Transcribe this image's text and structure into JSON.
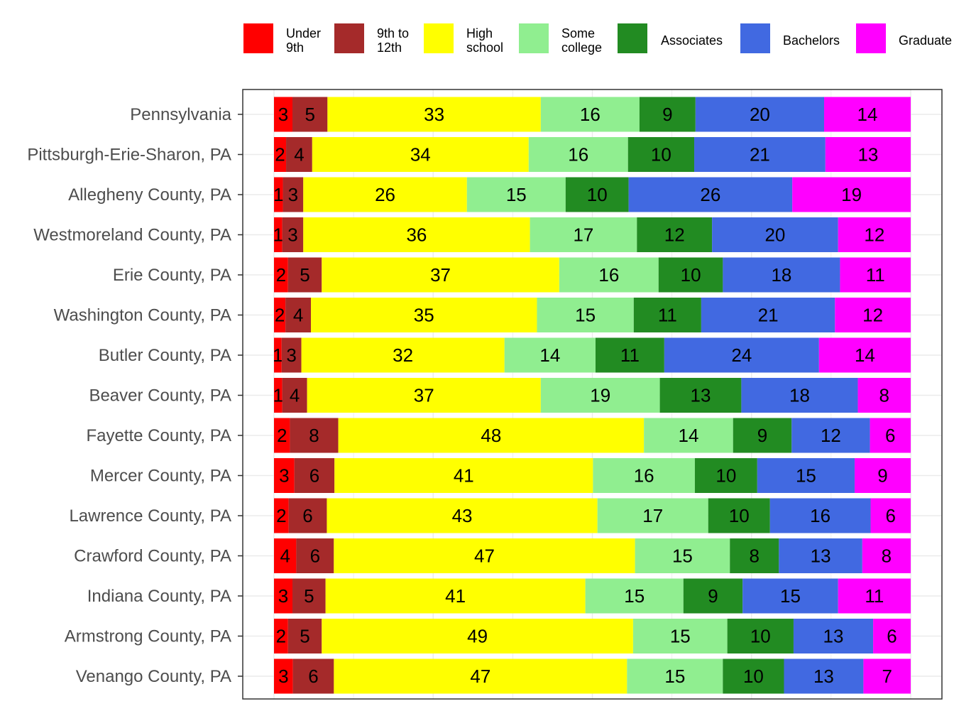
{
  "chart_data": {
    "type": "bar",
    "orientation": "horizontal",
    "stacked": true,
    "normalized": true,
    "title": "",
    "xlabel": "",
    "ylabel": "",
    "grid": true,
    "legend_position": "top",
    "categories": [
      "Pennsylvania",
      "Pittsburgh-Erie-Sharon, PA",
      "Allegheny County, PA",
      "Westmoreland County, PA",
      "Erie County, PA",
      "Washington County, PA",
      "Butler County, PA",
      "Beaver County, PA",
      "Fayette County, PA",
      "Mercer County, PA",
      "Lawrence County, PA",
      "Crawford County, PA",
      "Indiana County, PA",
      "Armstrong County, PA",
      "Venango County, PA"
    ],
    "series": [
      {
        "name": "Under 9th",
        "legend_lines": [
          "Under",
          "9th"
        ],
        "color": "#ff0000",
        "values": [
          2.9,
          1.9,
          1.4,
          1.3,
          2.2,
          1.8,
          1.2,
          1.3,
          2.5,
          3.2,
          2.3,
          3.5,
          2.9,
          2.2,
          3.0
        ]
      },
      {
        "name": "9th to 12th",
        "legend_lines": [
          "9th to",
          "12th"
        ],
        "color": "#a52a2a",
        "values": [
          5.5,
          4.1,
          3.2,
          3.3,
          5.3,
          4.0,
          3.1,
          3.9,
          7.6,
          6.3,
          6.0,
          5.9,
          5.2,
          5.3,
          6.5
        ]
      },
      {
        "name": "High school",
        "legend_lines": [
          "High",
          "school"
        ],
        "color": "#ffff00",
        "values": [
          33.5,
          34.0,
          25.7,
          35.6,
          37.3,
          35.5,
          31.9,
          36.7,
          48.0,
          40.6,
          42.5,
          47.3,
          40.8,
          48.9,
          46.5
        ]
      },
      {
        "name": "Some college",
        "legend_lines": [
          "Some",
          "college"
        ],
        "color": "#90ee90",
        "values": [
          15.5,
          15.6,
          15.5,
          16.8,
          15.6,
          15.2,
          14.3,
          18.7,
          14.0,
          16.0,
          17.4,
          14.9,
          15.4,
          14.8,
          15.2
        ]
      },
      {
        "name": "Associates",
        "legend_lines": [
          "Associates"
        ],
        "color": "#228b22",
        "values": [
          8.8,
          10.4,
          9.9,
          11.8,
          10.1,
          10.6,
          10.8,
          12.8,
          9.2,
          9.8,
          9.7,
          7.7,
          9.3,
          10.4,
          9.7
        ]
      },
      {
        "name": "Bachelors",
        "legend_lines": [
          "Bachelors"
        ],
        "color": "#4169e1",
        "values": [
          20.2,
          20.6,
          25.7,
          19.8,
          18.4,
          21.0,
          24.3,
          18.3,
          12.3,
          15.3,
          15.8,
          13.1,
          15.0,
          12.5,
          12.6
        ]
      },
      {
        "name": "Graduate",
        "legend_lines": [
          "Graduate"
        ],
        "color": "#ff00ff",
        "values": [
          13.6,
          13.4,
          18.6,
          11.4,
          11.1,
          11.9,
          14.4,
          8.3,
          6.4,
          8.8,
          6.3,
          7.6,
          11.4,
          5.9,
          7.5
        ]
      }
    ],
    "labels": [
      [
        "3",
        "5",
        "33",
        "16",
        "9",
        "20",
        "14"
      ],
      [
        "2",
        "4",
        "34",
        "16",
        "10",
        "21",
        "13"
      ],
      [
        "1",
        "3",
        "26",
        "15",
        "10",
        "26",
        "19"
      ],
      [
        "1",
        "3",
        "36",
        "17",
        "12",
        "20",
        "12"
      ],
      [
        "2",
        "5",
        "37",
        "16",
        "10",
        "18",
        "11"
      ],
      [
        "2",
        "4",
        "35",
        "15",
        "11",
        "21",
        "12"
      ],
      [
        "1",
        "3",
        "32",
        "14",
        "11",
        "24",
        "14"
      ],
      [
        "1",
        "4",
        "37",
        "19",
        "13",
        "18",
        "8"
      ],
      [
        "2",
        "8",
        "48",
        "14",
        "9",
        "12",
        "6"
      ],
      [
        "3",
        "6",
        "41",
        "16",
        "10",
        "15",
        "9"
      ],
      [
        "2",
        "6",
        "43",
        "17",
        "10",
        "16",
        "6"
      ],
      [
        "4",
        "6",
        "47",
        "15",
        "8",
        "13",
        "8"
      ],
      [
        "3",
        "5",
        "41",
        "15",
        "9",
        "15",
        "11"
      ],
      [
        "2",
        "5",
        "49",
        "15",
        "10",
        "13",
        "6"
      ],
      [
        "3",
        "6",
        "47",
        "15",
        "10",
        "13",
        "7"
      ]
    ]
  }
}
